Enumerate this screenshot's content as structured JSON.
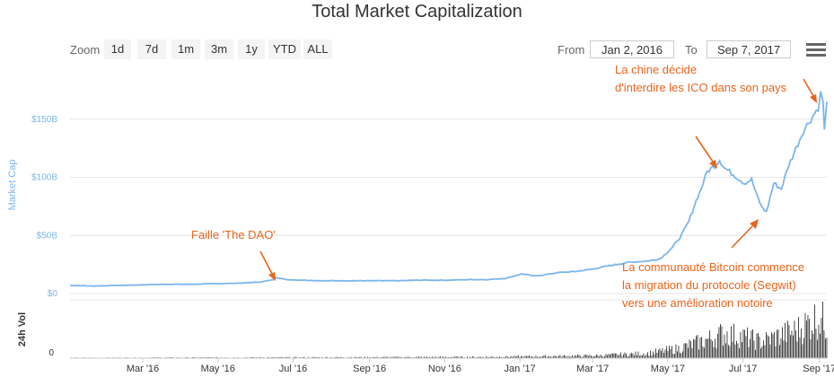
{
  "title": "Total Market Capitalization",
  "zoom": {
    "label": "Zoom",
    "buttons": [
      "1d",
      "7d",
      "1m",
      "3m",
      "1y",
      "YTD",
      "ALL"
    ]
  },
  "range": {
    "from_label": "From",
    "from_value": "Jan 2, 2016",
    "to_label": "To",
    "to_value": "Sep 7, 2017"
  },
  "menu_icon": "hamburger-menu-icon",
  "colors": {
    "series": "#7cb5ec",
    "volume": "#333333",
    "annotation": "#e8641b"
  },
  "chart_data": {
    "type": "line",
    "title": "Total Market Capitalization",
    "ylabel": "Market Cap",
    "volume_label": "24h Vol",
    "y_ticks": [
      "$0",
      "$50B",
      "$100B",
      "$150B"
    ],
    "y_tick_values": [
      0,
      50,
      100,
      150
    ],
    "ylim": [
      0,
      190
    ],
    "volume_tick": "0",
    "x_tick_labels": [
      "Mar '16",
      "May '16",
      "Jul '16",
      "Sep '16",
      "Nov '16",
      "Jan '17",
      "Mar '17",
      "May '17",
      "Jul '17",
      "Sep '17"
    ],
    "x_tick_dates": [
      "2016-03-01",
      "2016-05-01",
      "2016-07-01",
      "2016-09-01",
      "2016-11-01",
      "2017-01-01",
      "2017-03-01",
      "2017-05-01",
      "2017-07-01",
      "2017-09-01"
    ],
    "x_range": [
      "2016-01-02",
      "2017-09-07"
    ],
    "series": [
      {
        "x": [
          "2016-01-02",
          "2016-01-20",
          "2016-02-10",
          "2016-03-01",
          "2016-03-20",
          "2016-04-10",
          "2016-05-01",
          "2016-05-20",
          "2016-06-05",
          "2016-06-15",
          "2016-06-17",
          "2016-06-25",
          "2016-07-10",
          "2016-07-25",
          "2016-08-05",
          "2016-08-20",
          "2016-09-05",
          "2016-09-25",
          "2016-10-10",
          "2016-10-25",
          "2016-11-05",
          "2016-11-20",
          "2016-12-05",
          "2016-12-20",
          "2017-01-03",
          "2017-01-12",
          "2017-01-20",
          "2017-02-01",
          "2017-02-15",
          "2017-03-01",
          "2017-03-10",
          "2017-03-20",
          "2017-04-01",
          "2017-04-15",
          "2017-04-25",
          "2017-05-05",
          "2017-05-12",
          "2017-05-18",
          "2017-05-24",
          "2017-05-28",
          "2017-06-02",
          "2017-06-08",
          "2017-06-12",
          "2017-06-16",
          "2017-06-20",
          "2017-06-26",
          "2017-07-02",
          "2017-07-08",
          "2017-07-12",
          "2017-07-16",
          "2017-07-20",
          "2017-07-26",
          "2017-08-01",
          "2017-08-07",
          "2017-08-13",
          "2017-08-19",
          "2017-08-25",
          "2017-08-31",
          "2017-09-02",
          "2017-09-04",
          "2017-09-05",
          "2017-09-07"
        ],
        "values": [
          7,
          6.5,
          7,
          7.5,
          8,
          8,
          8.5,
          9,
          10,
          12,
          14,
          12,
          11.5,
          11,
          11,
          11,
          11,
          11,
          11.5,
          11.5,
          11.5,
          12,
          12,
          13,
          17,
          15,
          16,
          18,
          19,
          21,
          23,
          25,
          27,
          28,
          30,
          40,
          50,
          62,
          80,
          90,
          105,
          110,
          115,
          108,
          105,
          100,
          95,
          98,
          85,
          75,
          70,
          95,
          90,
          110,
          125,
          140,
          150,
          160,
          172,
          165,
          140,
          165
        ]
      }
    ],
    "volume_series": {
      "x": [
        "2016-01-02",
        "2016-07-01",
        "2016-12-01",
        "2017-03-01",
        "2017-04-15",
        "2017-05-10",
        "2017-06-01",
        "2017-06-15",
        "2017-07-01",
        "2017-07-15",
        "2017-08-01",
        "2017-08-15",
        "2017-08-25",
        "2017-09-01",
        "2017-09-07"
      ],
      "values": [
        0.5,
        1,
        1.5,
        3,
        6,
        12,
        22,
        30,
        26,
        20,
        28,
        35,
        45,
        50,
        40
      ]
    },
    "annotations": [
      "Faille 'The DAO'",
      "La chine décide",
      "d'interdire les ICO dans son pays",
      "La communauté Bitcoin commence",
      "la migration du protocole (Segwit)",
      "vers une amélioration notoire"
    ]
  }
}
